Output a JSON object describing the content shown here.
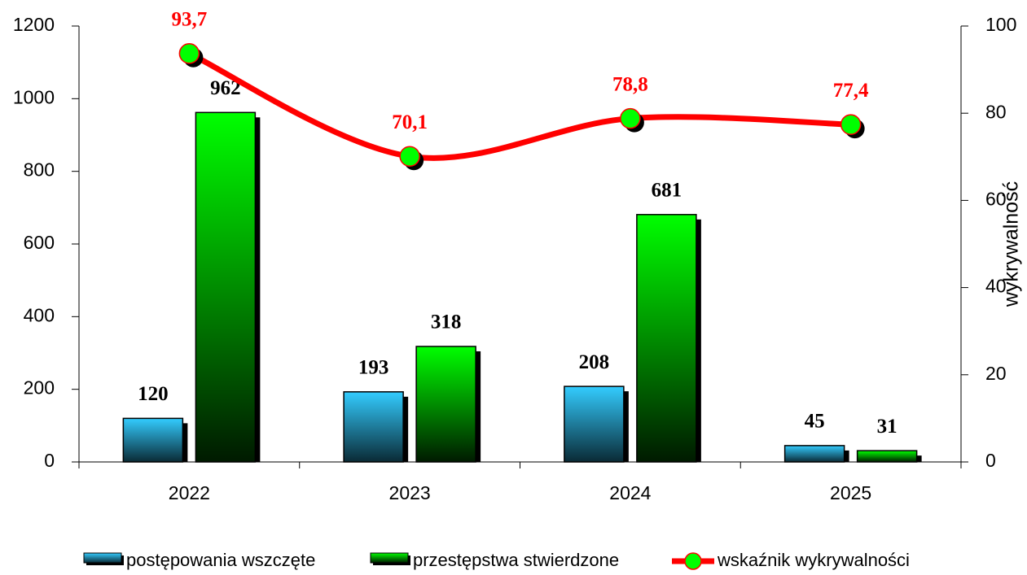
{
  "chart_data": {
    "type": "bar",
    "y2label": "wykrywalność",
    "categories": [
      "2022",
      "2023",
      "2024",
      "2025"
    ],
    "series": [
      {
        "name": "postępowania wszczęte",
        "type": "bar",
        "color": "#33ccff",
        "values": [
          120,
          193,
          208,
          45
        ]
      },
      {
        "name": "przestępstwa stwierdzone",
        "type": "bar",
        "color": "#00ff00",
        "values": [
          962,
          318,
          681,
          31
        ]
      },
      {
        "name": "wskaźnik wykrywalności",
        "type": "line",
        "axis": "y2",
        "color": "#ff0000",
        "marker_color": "#00ff00",
        "values": [
          93.7,
          70.1,
          78.8,
          77.4
        ],
        "value_labels": [
          "93,7",
          "70,1",
          "78,8",
          "77,4"
        ]
      }
    ],
    "ylim": [
      0,
      1200
    ],
    "yticks": [
      0,
      200,
      400,
      600,
      800,
      1000,
      1200
    ],
    "y2lim": [
      0,
      100
    ],
    "y2ticks": [
      0,
      20,
      40,
      60,
      80,
      100
    ],
    "legend": "bottom",
    "grid": false
  }
}
